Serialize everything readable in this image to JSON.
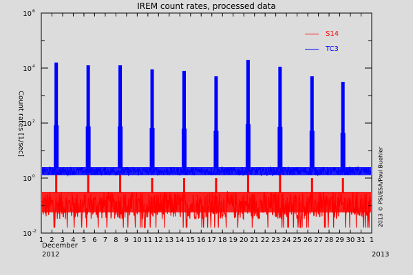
{
  "chart_data": {
    "type": "line",
    "title": "IREM count rates, processed data",
    "xlabel": "December 2012",
    "ylabel": "Count rates [1/sec]",
    "yscale": "log",
    "ylim": [
      0.01,
      1000000
    ],
    "ytick_labels": [
      "10^-2",
      "10^0",
      "10^2",
      "10^4",
      "10^6"
    ],
    "xlim": [
      1,
      32
    ],
    "xtick_labels": [
      "1",
      "2",
      "3",
      "4",
      "5",
      "6",
      "7",
      "8",
      "9",
      "10",
      "11",
      "12",
      "13",
      "14",
      "15",
      "16",
      "17",
      "18",
      "19",
      "20",
      "21",
      "22",
      "23",
      "24",
      "25",
      "26",
      "27",
      "28",
      "29",
      "30",
      "31",
      "1"
    ],
    "x_sublabels": {
      "month": "December",
      "start_year": "2012",
      "end_year": "2013"
    },
    "grid": false,
    "legend_position": "upper right",
    "series": [
      {
        "name": "S14",
        "color": "#ff0000",
        "baseline_band_log10": [
          -1.5,
          -0.5
        ],
        "min_drops_log10": -1.8,
        "peak_days": [
          2.4,
          5.4,
          8.4,
          11.4,
          14.4,
          17.4,
          20.4,
          23.4,
          26.4,
          29.3
        ],
        "peak_values_log10": [
          0.3,
          0.2,
          0.1,
          0.0,
          0.0,
          0.0,
          0.4,
          0.2,
          0.0,
          0.0
        ]
      },
      {
        "name": "TC3",
        "color": "#0000ff",
        "baseline_band_log10": [
          0.1,
          0.4
        ],
        "peak_days": [
          2.4,
          5.4,
          8.4,
          11.4,
          14.4,
          17.4,
          20.4,
          23.4,
          26.4,
          29.3
        ],
        "peak_values_log10": [
          4.2,
          4.1,
          4.1,
          3.95,
          3.9,
          3.7,
          4.3,
          4.05,
          3.7,
          3.5
        ]
      }
    ],
    "annotations": [
      "2013 © PSI/ESA/Paul Buehler"
    ]
  },
  "legend": [
    {
      "label": "S14",
      "color": "#ff0000"
    },
    {
      "label": "TC3",
      "color": "#0000ff"
    }
  ],
  "credit": "2013 © PSI/ESA/Paul Buehler"
}
